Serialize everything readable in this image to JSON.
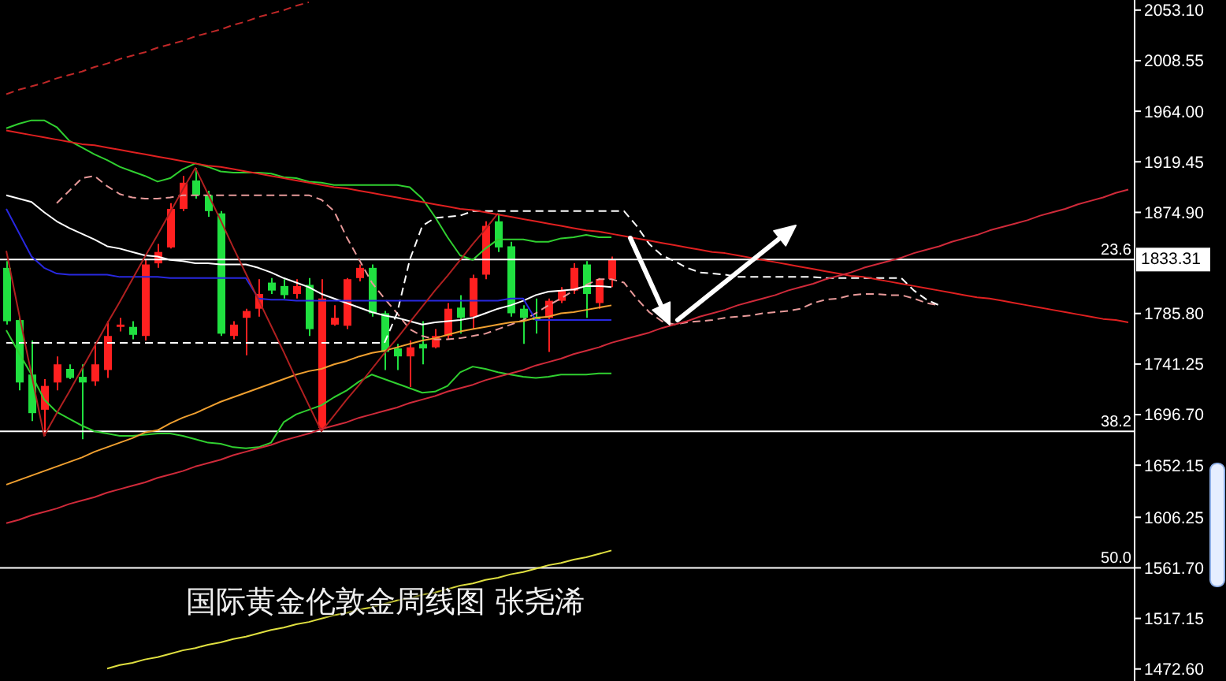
{
  "chart_data": {
    "type": "candlestick",
    "title": "国际黄金伦敦金周线图 张尧浠",
    "categories": [
      null,
      null,
      null,
      null,
      null,
      null,
      null,
      null,
      null,
      null,
      null,
      null,
      null,
      null,
      null,
      null,
      null,
      null,
      null,
      null,
      null,
      null,
      null,
      null,
      null,
      null,
      null,
      null,
      null,
      null,
      null,
      null,
      null,
      null,
      null,
      null,
      null,
      null,
      null,
      null,
      null,
      null,
      null,
      null,
      null,
      null,
      null,
      null,
      null,
      null,
      null,
      null,
      null,
      null,
      null,
      null,
      null,
      null,
      null,
      null,
      null,
      null,
      null,
      null,
      null,
      null,
      null,
      null,
      null,
      null,
      null,
      null,
      null,
      null,
      null,
      null,
      null,
      null,
      null,
      null,
      null,
      null,
      null,
      null,
      null,
      null,
      null,
      null,
      null,
      null
    ],
    "ohlc": [
      [
        1826,
        1832,
        1776,
        1779
      ],
      [
        1780,
        1783,
        1718,
        1725
      ],
      [
        1732,
        1762,
        1691,
        1698
      ],
      [
        1701,
        1728,
        1678,
        1722
      ],
      [
        1725,
        1748,
        1718,
        1741
      ],
      [
        1737,
        1741,
        1728,
        1729
      ],
      [
        1730,
        1741,
        1675,
        1725
      ],
      [
        1726,
        1759,
        1722,
        1741
      ],
      [
        1736,
        1779,
        1729,
        1766
      ],
      [
        1774,
        1782,
        1770,
        1776
      ],
      [
        1774,
        1779,
        1763,
        1767
      ],
      [
        1766,
        1833,
        1762,
        1829
      ],
      [
        1830,
        1847,
        1826,
        1840
      ],
      [
        1844,
        1883,
        1843,
        1878
      ],
      [
        1878,
        1907,
        1876,
        1901
      ],
      [
        1903,
        1914,
        1887,
        1890
      ],
      [
        1890,
        1894,
        1871,
        1876
      ],
      [
        1874,
        1876,
        1766,
        1768
      ],
      [
        1766,
        1779,
        1763,
        1776
      ],
      [
        1782,
        1790,
        1749,
        1788
      ],
      [
        1790,
        1816,
        1783,
        1803
      ],
      [
        1813,
        1817,
        1803,
        1806
      ],
      [
        1810,
        1816,
        1799,
        1802
      ],
      [
        1803,
        1816,
        1799,
        1810
      ],
      [
        1811,
        1817,
        1766,
        1772
      ],
      [
        1685,
        1816,
        1682,
        1799
      ],
      [
        1776,
        1793,
        1775,
        1782
      ],
      [
        1775,
        1817,
        1772,
        1816
      ],
      [
        1817,
        1829,
        1814,
        1826
      ],
      [
        1826,
        1829,
        1783,
        1786
      ],
      [
        1786,
        1788,
        1736,
        1752
      ],
      [
        1755,
        1759,
        1736,
        1748
      ],
      [
        1748,
        1762,
        1721,
        1756
      ],
      [
        1759,
        1779,
        1741,
        1755
      ],
      [
        1756,
        1772,
        1755,
        1766
      ],
      [
        1766,
        1795,
        1763,
        1790
      ],
      [
        1791,
        1802,
        1768,
        1782
      ],
      [
        1783,
        1820,
        1772,
        1817
      ],
      [
        1820,
        1867,
        1816,
        1863
      ],
      [
        1867,
        1874,
        1840,
        1844
      ],
      [
        1845,
        1849,
        1783,
        1786
      ],
      [
        1790,
        1793,
        1759,
        1782
      ],
      [
        1783,
        1799,
        1768,
        1780
      ],
      [
        1782,
        1799,
        1752,
        1797
      ],
      [
        1797,
        1809,
        1795,
        1806
      ],
      [
        1806,
        1830,
        1803,
        1826
      ],
      [
        1829,
        1832,
        1782,
        1803
      ],
      [
        1795,
        1817,
        1790,
        1816
      ],
      [
        1816,
        1836,
        1809,
        1833
      ],
      null,
      null,
      null,
      null,
      null,
      null,
      null,
      null,
      null,
      null,
      null,
      null,
      null,
      null,
      null,
      null,
      null,
      null,
      null,
      null,
      null,
      null,
      null,
      null,
      null,
      null,
      null,
      null,
      null,
      null,
      null,
      null,
      null,
      null,
      null,
      null,
      null,
      null,
      null,
      null,
      null
    ],
    "colors": [
      "#20e040",
      "#20e040",
      "#20e040",
      "#ff2020",
      "#ff2020",
      "#20e040",
      "#20e040",
      "#ff2020",
      "#ff2020",
      "#ff2020",
      "#20e040",
      "#ff2020",
      "#ff2020",
      "#ff2020",
      "#ff2020",
      "#20e040",
      "#20e040",
      "#20e040",
      "#ff2020",
      "#ff2020",
      "#ff2020",
      "#20e040",
      "#20e040",
      "#ff2020",
      "#20e040",
      "#ff2020",
      "#ff2020",
      "#ff2020",
      "#ff2020",
      "#20e040",
      "#20e040",
      "#20e040",
      "#ff2020",
      "#20e040",
      "#ff2020",
      "#ff2020",
      "#20e040",
      "#ff2020",
      "#ff2020",
      "#20e040",
      "#20e040",
      "#20e040",
      "#20e040",
      "#ff2020",
      "#ff2020",
      "#ff2020",
      "#20e040",
      "#ff2020",
      "#ff2020",
      null,
      null,
      null,
      null,
      null,
      null,
      null,
      null,
      null,
      null,
      null,
      null,
      null,
      null,
      null,
      null,
      null,
      null,
      null,
      null,
      null,
      null,
      null,
      null,
      null,
      null,
      null,
      null,
      null,
      null,
      null,
      null,
      null,
      null,
      null,
      null,
      null,
      null,
      null,
      null,
      null
    ],
    "series": [
      {
        "type": "line",
        "color": "#e89a9a",
        "line_style": "dashed",
        "values": [
          null,
          null,
          null,
          null,
          1883,
          1894,
          1905,
          1907,
          1898,
          1891,
          1888,
          1887,
          1887,
          1888,
          1890,
          1890,
          1890,
          1890,
          1890,
          1890,
          1890,
          1890,
          1890,
          1890,
          1890,
          1886,
          1876,
          1853,
          1833,
          1813,
          1799,
          1786,
          1772,
          1766,
          1763,
          1763,
          1764,
          1766,
          1768,
          1772,
          1776,
          1780,
          1786,
          1793,
          1799,
          1806,
          1811,
          1816,
          1816,
          1813,
          1799,
          1787,
          1779,
          1776,
          1778,
          1779,
          1780,
          1782,
          1783,
          1784,
          1786,
          1787,
          1788,
          1790,
          1795,
          1798,
          1799,
          1802,
          1803,
          1803,
          1802,
          1802,
          1799,
          1795,
          1793,
          null,
          null,
          null,
          null,
          null,
          null,
          null,
          null,
          null,
          null,
          null,
          null,
          null,
          null,
          null
        ]
      },
      {
        "type": "line",
        "color": "#ffffff",
        "line_style": "dashed",
        "values": [
          1760,
          1760,
          1760,
          1760,
          1760,
          1760,
          1760,
          1760,
          1760,
          1760,
          1760,
          1760,
          1760,
          1760,
          1760,
          1760,
          1760,
          1760,
          1760,
          1760,
          1760,
          1760,
          1760,
          1760,
          1760,
          1760,
          1760,
          1760,
          1760,
          1760,
          1760,
          1786,
          1833,
          1863,
          1870,
          1871,
          1872,
          1876,
          1876,
          1876,
          1876,
          1876,
          1876,
          1876,
          1876,
          1876,
          1876,
          1876,
          1876,
          1876,
          1863,
          1847,
          1837,
          1832,
          1826,
          1822,
          1821,
          1820,
          1818,
          1818,
          1818,
          1818,
          1818,
          1818,
          1818,
          1817,
          1817,
          1817,
          1817,
          1817,
          1817,
          1817,
          1806,
          1798,
          1793,
          null,
          null,
          null,
          null,
          null,
          null,
          null,
          null,
          null,
          null,
          null,
          null,
          null,
          null,
          null
        ]
      },
      {
        "type": "line",
        "color": "#30d030",
        "values": [
          1949,
          1953,
          1956,
          1956,
          1950,
          1938,
          1932,
          1926,
          1921,
          1915,
          1911,
          1907,
          1902,
          1905,
          1913,
          1918,
          1915,
          1911,
          1910,
          1910,
          1910,
          1909,
          1906,
          1905,
          1902,
          1901,
          1899,
          1899,
          1899,
          1899,
          1899,
          1899,
          1897,
          1887,
          1871,
          1853,
          1837,
          1833,
          1843,
          1851,
          1851,
          1851,
          1849,
          1849,
          1852,
          1853,
          1855,
          1853,
          1853,
          null,
          null,
          null,
          null,
          null,
          null,
          null,
          null,
          null,
          null,
          null,
          null,
          null,
          null,
          null,
          null,
          null,
          null,
          null,
          null,
          null,
          null,
          null,
          null,
          null,
          null,
          null,
          null,
          null,
          null,
          null,
          null,
          null,
          null,
          null,
          null,
          null,
          null,
          null,
          null,
          null
        ]
      },
      {
        "type": "line",
        "color": "#30d030",
        "values": [
          1771,
          1751,
          1732,
          1710,
          1699,
          1693,
          1687,
          1682,
          1680,
          1678,
          1678,
          1679,
          1680,
          1680,
          1678,
          1675,
          1672,
          1671,
          1668,
          1667,
          1668,
          1672,
          1690,
          1697,
          1701,
          1705,
          1712,
          1718,
          1726,
          1732,
          1728,
          1724,
          1720,
          1716,
          1717,
          1722,
          1734,
          1739,
          1737,
          1734,
          1732,
          1730,
          1729,
          1730,
          1732,
          1732,
          1732,
          1733,
          1733,
          null,
          null,
          null,
          null,
          null,
          null,
          null,
          null,
          null,
          null,
          null,
          null,
          null,
          null,
          null,
          null,
          null,
          null,
          null,
          null,
          null,
          null,
          null,
          null,
          null,
          null,
          null,
          null,
          null,
          null,
          null,
          null,
          null,
          null,
          null,
          null,
          null,
          null,
          null,
          null,
          null
        ]
      },
      {
        "type": "line",
        "color": "#ffffff",
        "values": [
          1890,
          1887,
          1884,
          1875,
          1867,
          1861,
          1856,
          1851,
          1845,
          1843,
          1840,
          1837,
          1836,
          1833,
          1832,
          1830,
          1830,
          1829,
          1829,
          1829,
          1826,
          1822,
          1817,
          1813,
          1809,
          1803,
          1799,
          1795,
          1791,
          1787,
          1784,
          1782,
          1779,
          1776,
          1778,
          1779,
          1780,
          1782,
          1786,
          1790,
          1793,
          1797,
          1802,
          1805,
          1806,
          1807,
          1810,
          1810,
          1809,
          null,
          null,
          null,
          null,
          null,
          null,
          null,
          null,
          null,
          null,
          null,
          null,
          null,
          null,
          null,
          null,
          null,
          null,
          null,
          null,
          null,
          null,
          null,
          null,
          null,
          null,
          null,
          null,
          null,
          null,
          null,
          null,
          null,
          null,
          null,
          null,
          null,
          null,
          null,
          null,
          null
        ]
      },
      {
        "type": "line",
        "color": "#2828e0",
        "values": [
          1878,
          1857,
          1836,
          1826,
          1821,
          1820,
          1820,
          1820,
          1820,
          1818,
          1818,
          1818,
          1818,
          1817,
          1817,
          1817,
          1817,
          1817,
          1817,
          1817,
          1799,
          1798,
          1798,
          1797,
          1797,
          1797,
          1797,
          1797,
          1797,
          1797,
          1797,
          1797,
          1797,
          1797,
          1797,
          1797,
          1797,
          1797,
          1797,
          1797,
          1799,
          1799,
          1780,
          1780,
          1780,
          1780,
          1780,
          1780,
          1780,
          null,
          null,
          null,
          null,
          null,
          null,
          null,
          null,
          null,
          null,
          null,
          null,
          null,
          null,
          null,
          null,
          null,
          null,
          null,
          null,
          null,
          null,
          null,
          null,
          null,
          null,
          null,
          null,
          null,
          null,
          null,
          null,
          null,
          null,
          null,
          null,
          null,
          null,
          null,
          null,
          null
        ]
      },
      {
        "type": "line",
        "color": "#f0a030",
        "values": [
          1635,
          1639,
          1643,
          1647,
          1651,
          1655,
          1659,
          1664,
          1668,
          1672,
          1676,
          1681,
          1683,
          1689,
          1694,
          1698,
          1703,
          1708,
          1712,
          1716,
          1720,
          1724,
          1728,
          1732,
          1735,
          1737,
          1741,
          1744,
          1748,
          1751,
          1753,
          1756,
          1759,
          1762,
          1764,
          1767,
          1770,
          1772,
          1774,
          1776,
          1778,
          1779,
          1782,
          1783,
          1786,
          1787,
          1789,
          1791,
          1793,
          null,
          null,
          null,
          null,
          null,
          null,
          null,
          null,
          null,
          null,
          null,
          null,
          null,
          null,
          null,
          null,
          null,
          null,
          null,
          null,
          null,
          null,
          null,
          null,
          null,
          null,
          null,
          null,
          null,
          null,
          null,
          null,
          null,
          null,
          null,
          null,
          null,
          null,
          null,
          null,
          null
        ]
      },
      {
        "type": "line",
        "color": "#b02020",
        "values": [
          1841,
          1786,
          1732,
          1678,
          1698,
          1717,
          1737,
          1757,
          1777,
          1796,
          1816,
          1836,
          1855,
          1875,
          1895,
          1914,
          1891,
          1868,
          1844,
          1821,
          1798,
          1775,
          1752,
          1728,
          1705,
          1682,
          1696,
          1710,
          1723,
          1737,
          1751,
          1764,
          1778,
          1792,
          1806,
          1819,
          1833,
          1847,
          1860,
          1874,
          null,
          null,
          null,
          null,
          null,
          null,
          null,
          null,
          null,
          null,
          null,
          null,
          null,
          null,
          null,
          null,
          null,
          null,
          null,
          null,
          null,
          null,
          null,
          null,
          null,
          null,
          null,
          null,
          null,
          null,
          null,
          null,
          null,
          null,
          null,
          null,
          null,
          null,
          null,
          null,
          null,
          null,
          null,
          null,
          null,
          null,
          null,
          null,
          null,
          null
        ]
      },
      {
        "type": "line",
        "color": "#e02020",
        "values": [
          1947,
          1945,
          1943,
          1941,
          1939,
          1937,
          1935,
          1934,
          1932,
          1930,
          1928,
          1926,
          1924,
          1922,
          1920,
          1918,
          1916,
          1915,
          1913,
          1911,
          1909,
          1907,
          1905,
          1903,
          1901,
          1899,
          1897,
          1896,
          1894,
          1892,
          1890,
          1888,
          1886,
          1884,
          1882,
          1880,
          1878,
          1877,
          1875,
          1873,
          1871,
          1869,
          1867,
          1865,
          1863,
          1861,
          1859,
          1858,
          1856,
          1854,
          1852,
          1850,
          1848,
          1846,
          1844,
          1842,
          1840,
          1839,
          1837,
          1835,
          1833,
          1831,
          1829,
          1827,
          1825,
          1823,
          1821,
          1819,
          1818,
          1816,
          1814,
          1812,
          1810,
          1808,
          1806,
          1804,
          1802,
          1800,
          1799,
          1797,
          1795,
          1793,
          1791,
          1789,
          1787,
          1785,
          1783,
          1781,
          1780,
          1778
        ]
      },
      {
        "type": "line",
        "color": "#d02a3a",
        "values": [
          1601,
          1604,
          1608,
          1611,
          1614,
          1618,
          1621,
          1624,
          1628,
          1631,
          1634,
          1637,
          1641,
          1644,
          1647,
          1651,
          1654,
          1657,
          1661,
          1664,
          1667,
          1670,
          1674,
          1677,
          1680,
          1684,
          1687,
          1690,
          1694,
          1697,
          1700,
          1703,
          1707,
          1710,
          1713,
          1717,
          1720,
          1723,
          1727,
          1730,
          1733,
          1736,
          1740,
          1743,
          1746,
          1750,
          1753,
          1756,
          1760,
          1763,
          1766,
          1769,
          1773,
          1776,
          1779,
          1783,
          1786,
          1789,
          1793,
          1796,
          1799,
          1802,
          1806,
          1809,
          1812,
          1816,
          1819,
          1822,
          1826,
          1829,
          1832,
          1835,
          1839,
          1842,
          1845,
          1849,
          1852,
          1855,
          1859,
          1862,
          1865,
          1868,
          1872,
          1875,
          1878,
          1882,
          1885,
          1888,
          1892,
          1895
        ]
      },
      {
        "type": "line",
        "color": "#c02828",
        "line_style": "dashed",
        "values": [
          1979,
          1983,
          1986,
          1989,
          1993,
          1996,
          1999,
          2003,
          2006,
          2010,
          2013,
          2016,
          2020,
          2023,
          2026,
          2030,
          2033,
          2036,
          2040,
          2043,
          2047,
          2050,
          2053,
          2057,
          2060,
          null,
          null,
          null,
          null,
          null,
          null,
          null,
          null,
          null,
          null,
          null,
          null,
          null,
          null,
          null,
          null,
          null,
          null,
          null,
          null,
          null,
          null,
          null,
          null,
          null,
          null,
          null,
          null,
          null,
          null,
          null,
          null,
          null,
          null,
          null,
          null,
          null,
          null,
          null,
          null,
          null,
          null,
          null,
          null,
          null,
          null,
          null,
          null,
          null,
          null,
          null,
          null,
          null,
          null,
          null,
          null,
          null,
          null,
          null,
          null,
          null,
          null,
          null,
          null,
          null
        ]
      },
      {
        "type": "line",
        "color": "#e0e040",
        "values": [
          null,
          null,
          null,
          null,
          null,
          null,
          null,
          null,
          1473,
          1476,
          1478,
          1481,
          1483,
          1486,
          1489,
          1491,
          1494,
          1496,
          1499,
          1501,
          1504,
          1507,
          1509,
          1512,
          1514,
          1517,
          1520,
          1522,
          1525,
          1527,
          1530,
          1533,
          1535,
          1538,
          1540,
          1543,
          1546,
          1548,
          1551,
          1553,
          1556,
          1558,
          1561,
          1564,
          1566,
          1569,
          1571,
          1574,
          1577,
          null,
          null,
          null,
          null,
          null,
          null,
          null,
          null,
          null,
          null,
          null,
          null,
          null,
          null,
          null,
          null,
          null,
          null,
          null,
          null,
          null,
          null,
          null,
          null,
          null,
          null,
          null,
          null,
          null,
          null,
          null,
          null,
          null,
          null,
          null,
          null,
          null,
          null,
          null,
          null,
          null
        ]
      }
    ],
    "ylim": [
      1462,
      2062
    ],
    "yticks": [
      {
        "value": 2053.1,
        "label": "2053.10"
      },
      {
        "value": 2008.55,
        "label": "2008.55"
      },
      {
        "value": 1964,
        "label": "1964.00"
      },
      {
        "value": 1919.45,
        "label": "1919.45"
      },
      {
        "value": 1874.9,
        "label": "1874.90"
      },
      {
        "value": 1785.8,
        "label": "1785.80"
      },
      {
        "value": 1741.25,
        "label": "1741.25"
      },
      {
        "value": 1696.7,
        "label": "1696.70"
      },
      {
        "value": 1652.15,
        "label": "1652.15"
      },
      {
        "value": 1606.25,
        "label": "1606.25"
      },
      {
        "value": 1561.7,
        "label": "1561.70"
      },
      {
        "value": 1517.15,
        "label": "1517.15"
      },
      {
        "value": 1472.6,
        "label": "1472.60"
      }
    ],
    "tick_labels": "y",
    "ref_lines": [
      {
        "axis": "y",
        "value": 1833.31,
        "label": "1833.31",
        "color": "#ffffff"
      },
      {
        "axis": "y",
        "value": 1682,
        "color": "#ffffff"
      },
      {
        "axis": "y",
        "value": 1561.7,
        "color": "#ffffff"
      }
    ],
    "annotations": [
      {
        "text": "23.6",
        "y": 1833.31
      },
      {
        "text": "38.2",
        "y": 1682
      },
      {
        "text": "50.0",
        "y": 1561.7
      }
    ]
  }
}
